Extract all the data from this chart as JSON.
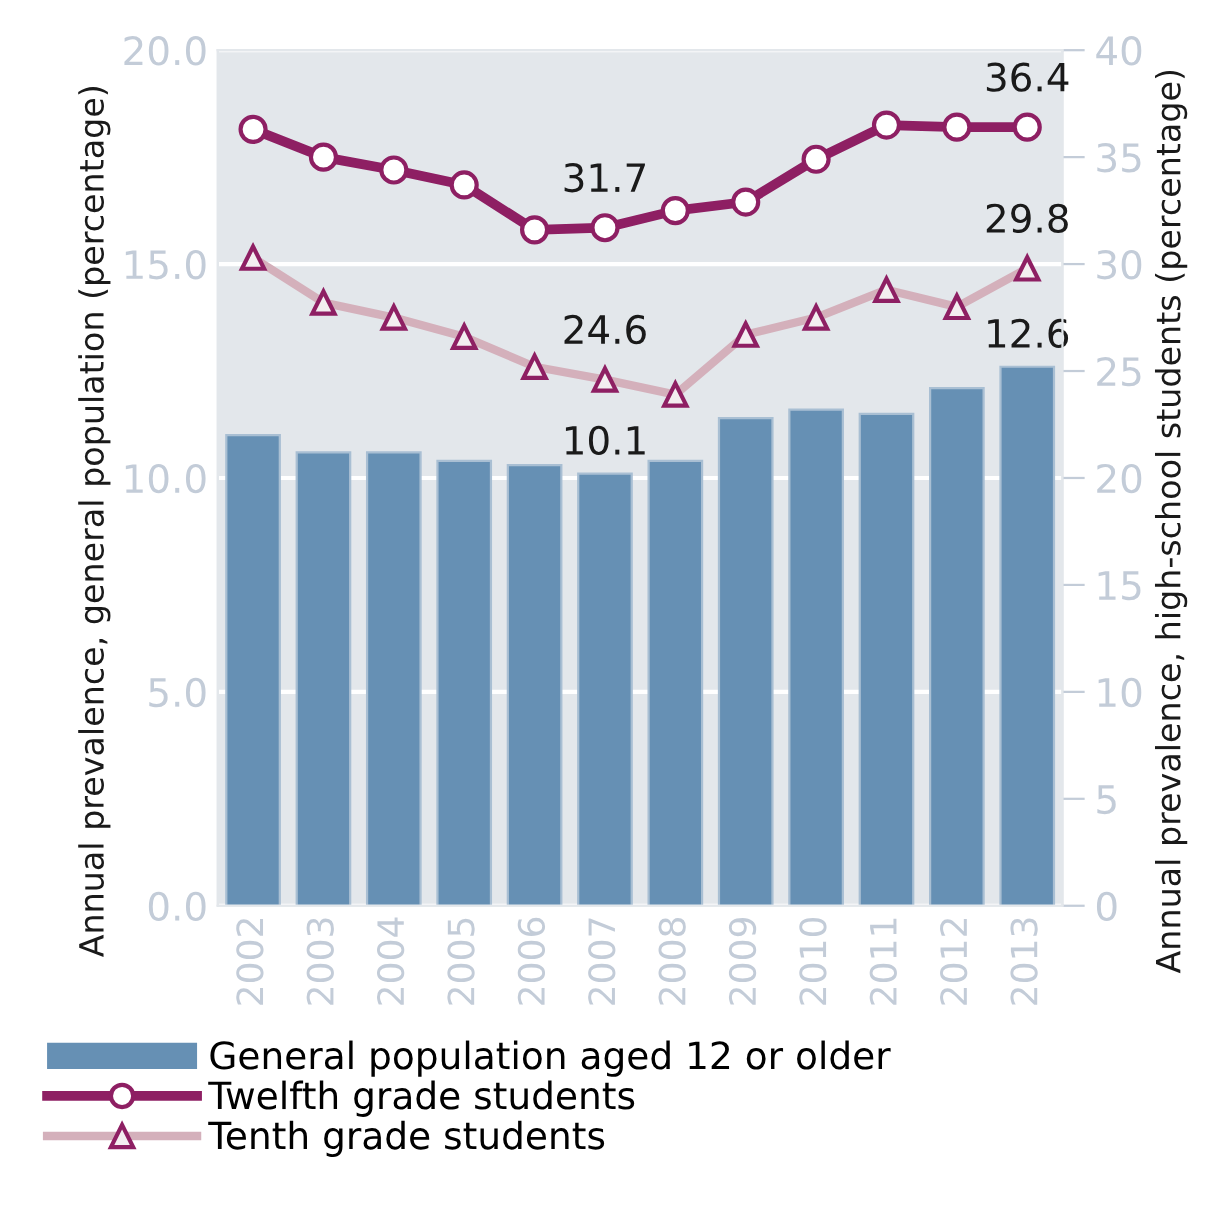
{
  "chart_data": {
    "type": "bar",
    "ylabel": "Annual prevalence, general population (percentage)",
    "y2label": "Annual prevalence, high-school students (percentage)",
    "categories": [
      "2002",
      "2003",
      "2004",
      "2005",
      "2006",
      "2007",
      "2008",
      "2009",
      "2010",
      "2011",
      "2012",
      "2013"
    ],
    "series": [
      {
        "name": "General population aged 12 or older",
        "color": "#6690b4",
        "values": [
          11.0,
          10.6,
          10.6,
          10.4,
          10.3,
          10.1,
          10.4,
          11.4,
          11.6,
          11.5,
          12.1,
          12.6
        ],
        "value_labels": [
          null,
          null,
          null,
          null,
          null,
          "10.1",
          null,
          null,
          null,
          null,
          null,
          "12.6"
        ]
      },
      {
        "name": "Twelfth grade students",
        "type": "line",
        "axis": "y2",
        "color": "#8e1f63",
        "marker": "circle",
        "values": [
          36.3,
          35.0,
          34.4,
          33.7,
          31.6,
          31.7,
          32.5,
          32.9,
          34.9,
          36.5,
          36.4,
          36.4
        ],
        "value_labels": [
          null,
          null,
          null,
          null,
          null,
          "31.7",
          null,
          null,
          null,
          null,
          null,
          "36.4"
        ]
      },
      {
        "name": "Tenth grade students",
        "type": "line",
        "axis": "y2",
        "color": "#d4b0bb",
        "marker": "triangle",
        "values": [
          30.3,
          28.2,
          27.5,
          26.6,
          25.2,
          24.6,
          23.9,
          26.7,
          27.5,
          28.8,
          28.0,
          29.8
        ],
        "value_labels": [
          null,
          null,
          null,
          null,
          null,
          "24.6",
          null,
          null,
          null,
          null,
          null,
          "29.8"
        ]
      }
    ],
    "ylim": [
      0,
      20
    ],
    "yticks": [
      {
        "value": 0,
        "label": "0.0"
      },
      {
        "value": 5,
        "label": "5.0"
      },
      {
        "value": 10,
        "label": "10.0"
      },
      {
        "value": 15,
        "label": "15.0"
      },
      {
        "value": 20,
        "label": "20.0"
      }
    ],
    "y2lim": [
      0,
      40
    ],
    "y2ticks": [
      0,
      5,
      10,
      15,
      20,
      25,
      30,
      35,
      40
    ],
    "grid": "y",
    "legend": "bottom"
  }
}
